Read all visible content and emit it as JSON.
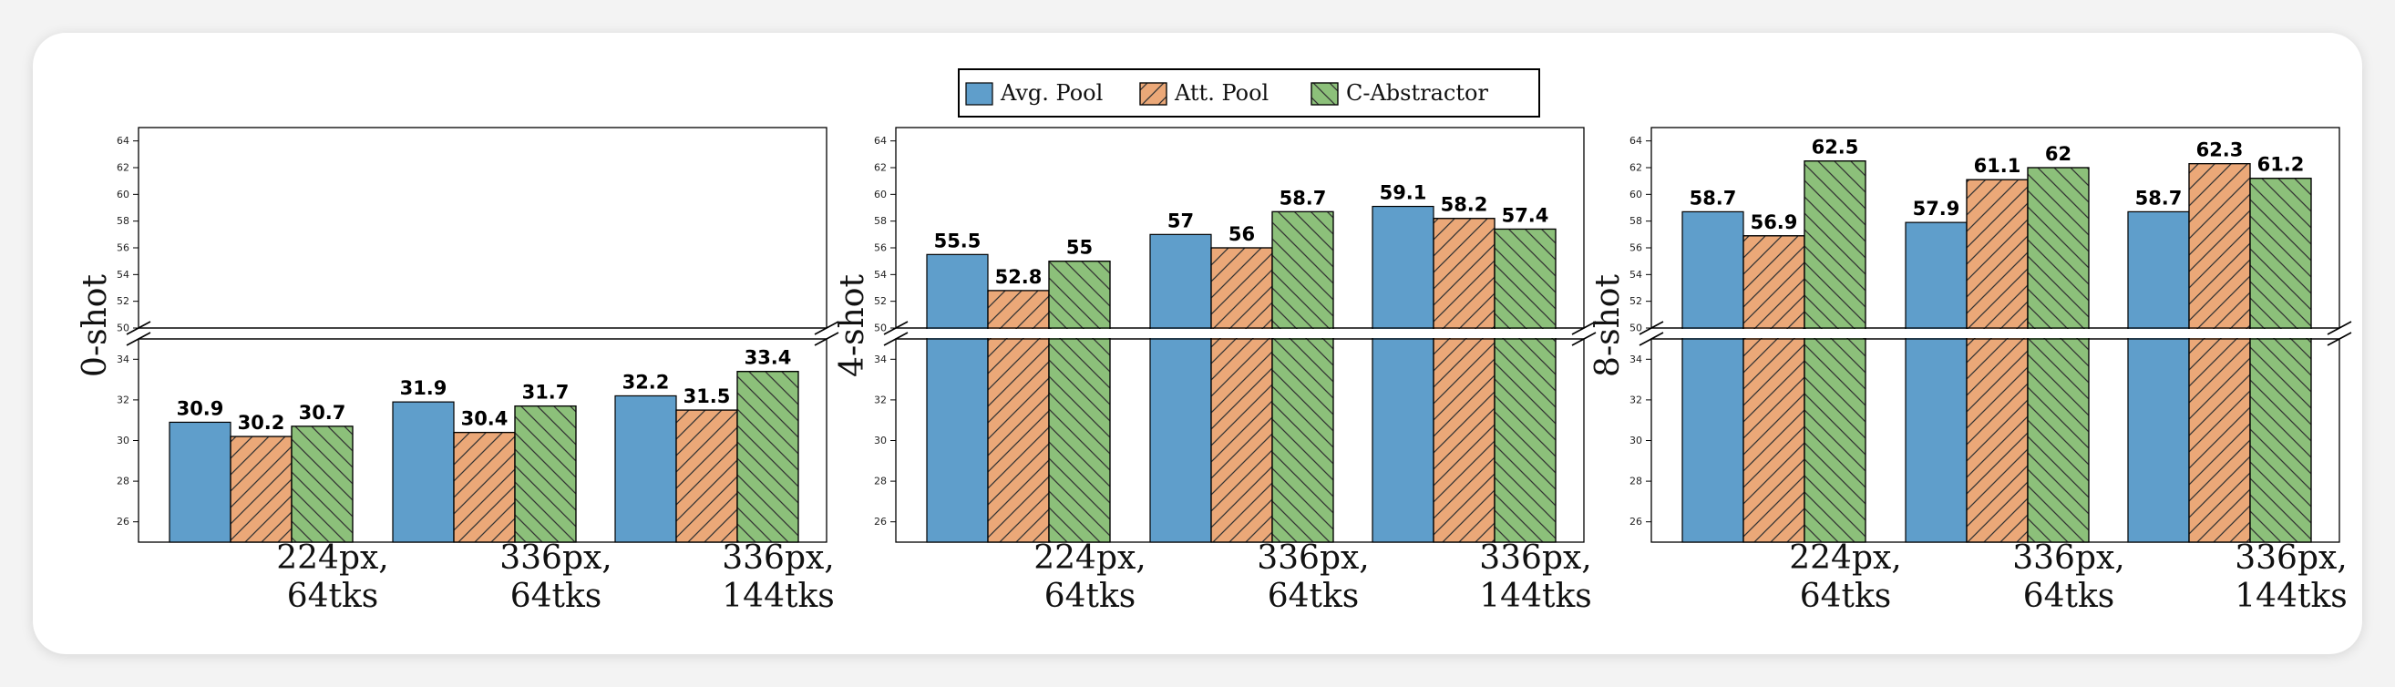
{
  "legend": {
    "items": [
      {
        "label": "Avg. Pool",
        "color": "#5f9ecb",
        "hatch": "none"
      },
      {
        "label": "Att. Pool",
        "color": "#eba878",
        "hatch": "forward"
      },
      {
        "label": "C-Abstractor",
        "color": "#8cc07a",
        "hatch": "back"
      }
    ]
  },
  "chart_data": [
    {
      "type": "bar",
      "ylabel": "0-shot",
      "categories": [
        [
          "224px,",
          "64tks"
        ],
        [
          "336px,",
          "64tks"
        ],
        [
          "336px,",
          "144tks"
        ]
      ],
      "series": [
        {
          "name": "Avg. Pool",
          "values": [
            30.9,
            31.9,
            32.2
          ]
        },
        {
          "name": "Att. Pool",
          "values": [
            30.2,
            30.4,
            31.5
          ]
        },
        {
          "name": "C-Abstractor",
          "values": [
            30.7,
            31.7,
            33.4
          ]
        }
      ],
      "value_labels": [
        [
          "30.9",
          "31.9",
          "32.2"
        ],
        [
          "30.2",
          "30.4",
          "31.5"
        ],
        [
          "30.7",
          "31.7",
          "33.4"
        ]
      ],
      "axis_break": true,
      "ylim_lower": [
        25,
        35
      ],
      "ylim_upper": [
        50,
        65
      ],
      "yticks_lower": [
        "26",
        "28",
        "30",
        "32",
        "34"
      ],
      "yticks_upper": [
        "50",
        "52",
        "54",
        "56",
        "58",
        "60",
        "62",
        "64"
      ]
    },
    {
      "type": "bar",
      "ylabel": "4-shot",
      "categories": [
        [
          "224px,",
          "64tks"
        ],
        [
          "336px,",
          "64tks"
        ],
        [
          "336px,",
          "144tks"
        ]
      ],
      "series": [
        {
          "name": "Avg. Pool",
          "values": [
            55.5,
            57,
            59.1
          ]
        },
        {
          "name": "Att. Pool",
          "values": [
            52.8,
            56,
            58.2
          ]
        },
        {
          "name": "C-Abstractor",
          "values": [
            55,
            58.7,
            57.4
          ]
        }
      ],
      "value_labels": [
        [
          "55.5",
          "57",
          "59.1"
        ],
        [
          "52.8",
          "56",
          "58.2"
        ],
        [
          "55",
          "58.7",
          "57.4"
        ]
      ],
      "axis_break": true,
      "ylim_lower": [
        25,
        35
      ],
      "ylim_upper": [
        50,
        65
      ],
      "yticks_lower": [
        "26",
        "28",
        "30",
        "32",
        "34"
      ],
      "yticks_upper": [
        "50",
        "52",
        "54",
        "56",
        "58",
        "60",
        "62",
        "64"
      ]
    },
    {
      "type": "bar",
      "ylabel": "8-shot",
      "categories": [
        [
          "224px,",
          "64tks"
        ],
        [
          "336px,",
          "64tks"
        ],
        [
          "336px,",
          "144tks"
        ]
      ],
      "series": [
        {
          "name": "Avg. Pool",
          "values": [
            58.7,
            57.9,
            58.7
          ]
        },
        {
          "name": "Att. Pool",
          "values": [
            56.9,
            61.1,
            62.3
          ]
        },
        {
          "name": "C-Abstractor",
          "values": [
            62.5,
            62,
            61.2
          ]
        }
      ],
      "value_labels": [
        [
          "58.7",
          "57.9",
          "58.7"
        ],
        [
          "56.9",
          "61.1",
          "62.3"
        ],
        [
          "62.5",
          "62",
          "61.2"
        ]
      ],
      "axis_break": true,
      "ylim_lower": [
        25,
        35
      ],
      "ylim_upper": [
        50,
        65
      ],
      "yticks_lower": [
        "26",
        "28",
        "30",
        "32",
        "34"
      ],
      "yticks_upper": [
        "50",
        "52",
        "54",
        "56",
        "58",
        "60",
        "62",
        "64"
      ]
    }
  ]
}
